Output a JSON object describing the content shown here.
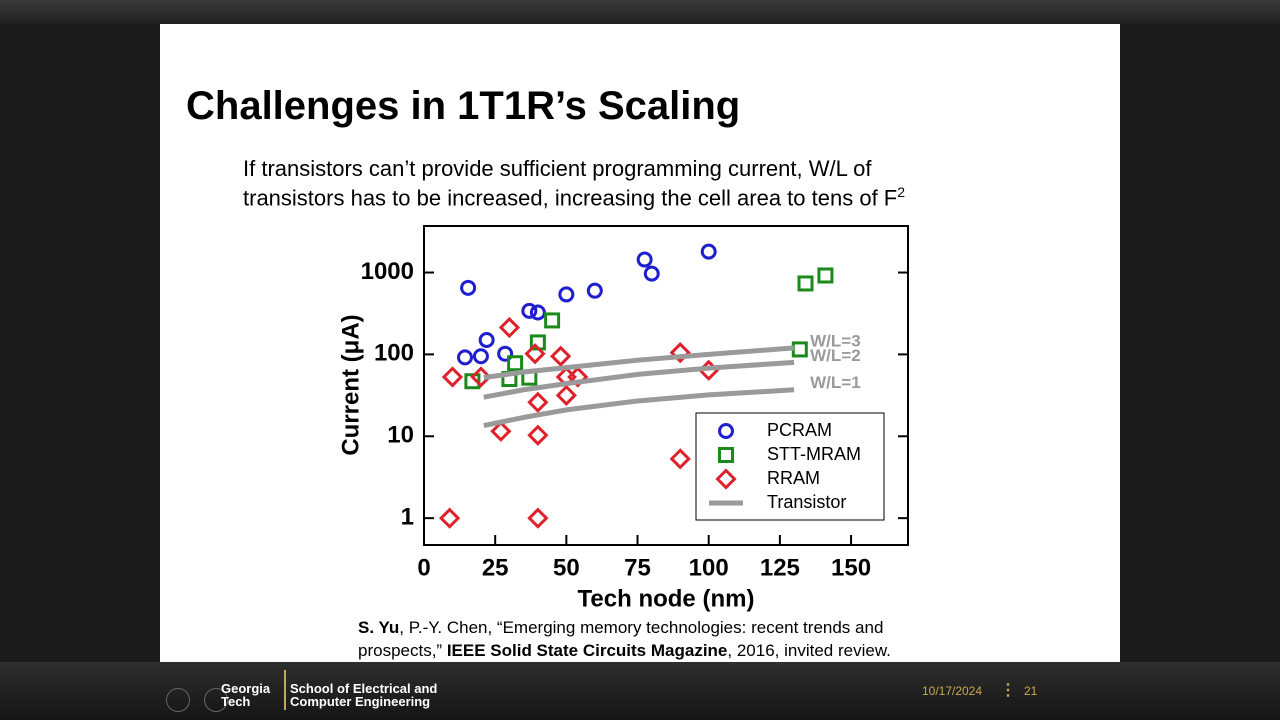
{
  "slide": {
    "title": "Challenges in 1T1R’s Scaling",
    "body": {
      "lines": [
        "If transistors can’t provide sufficient programming current, W/L of",
        "transistors has to be increased, increasing the cell area to tens of F"
      ],
      "superscript": "2"
    },
    "citation": {
      "lines": [
        [
          {
            "text": "S. Yu",
            "bold": true
          },
          {
            "text": ", P.-Y. Chen, “Emerging memory technologies: recent trends and",
            "bold": false
          }
        ],
        [
          {
            "text": "prospects,” ",
            "bold": false
          },
          {
            "text": "IEEE Solid State Circuits Magazine",
            "bold": true
          },
          {
            "text": ", 2016, invited review.",
            "bold": false
          }
        ]
      ]
    }
  },
  "chart_data": {
    "type": "scatter",
    "y_label": "Current (μA)",
    "x_label": "Tech node (nm)",
    "xlim": [
      0,
      170
    ],
    "xticks": [
      0,
      25,
      50,
      75,
      100,
      125,
      150
    ],
    "ylim": [
      0.47,
      3700
    ],
    "yticks": [
      1,
      10,
      100,
      1000
    ],
    "log_y": true,
    "legend": "lower right",
    "series": [
      {
        "name": "PCRAM",
        "color": "#1f1fd0",
        "marker": "circle",
        "x": [
          15.5,
          14.4,
          20,
          22,
          28.5,
          37,
          40,
          50,
          60,
          77.5,
          80,
          100
        ],
        "values": [
          650,
          92,
          95,
          150,
          102,
          340,
          325,
          540,
          600,
          1440,
          970,
          1800
        ]
      },
      {
        "name": "STT-MRAM",
        "color": "#1a8a1a",
        "marker": "square",
        "x": [
          17,
          32,
          30,
          37,
          40,
          45,
          132,
          134,
          141
        ],
        "values": [
          47,
          78,
          50,
          52,
          140,
          260,
          115,
          735,
          920
        ]
      },
      {
        "name": "RRAM",
        "color": "#e0202a",
        "marker": "diamond",
        "x": [
          10,
          20,
          30,
          39,
          48,
          50,
          54,
          40,
          50,
          27,
          40,
          90,
          100,
          90,
          9,
          40
        ],
        "values": [
          53,
          53,
          213,
          102,
          95,
          53,
          53,
          26,
          31.6,
          11.5,
          10.3,
          105,
          64,
          5.3,
          1,
          1
        ]
      },
      {
        "name": "Transistor",
        "color": "#9a9a9a",
        "marker": "line",
        "lines": [
          {
            "label": "W/L=3",
            "x": [
              21,
              35,
              50,
              75,
              100,
              130
            ],
            "values": [
              52,
              61,
              69,
              85,
              100,
              120
            ]
          },
          {
            "label": "W/L=2",
            "x": [
              21,
              35,
              50,
              75,
              100,
              130
            ],
            "values": [
              30,
              37,
              44,
              57,
              68,
              80
            ]
          },
          {
            "label": "W/L=1",
            "x": [
              21,
              35,
              50,
              75,
              100,
              130
            ],
            "values": [
              13.5,
              17,
              21,
              27,
              32,
              37
            ]
          }
        ]
      }
    ]
  },
  "footer": {
    "logo": [
      "Georgia",
      "Tech"
    ],
    "school": [
      "School of Electrical and",
      "Computer Engineering"
    ],
    "date": "10/17/2024",
    "page": "21"
  }
}
